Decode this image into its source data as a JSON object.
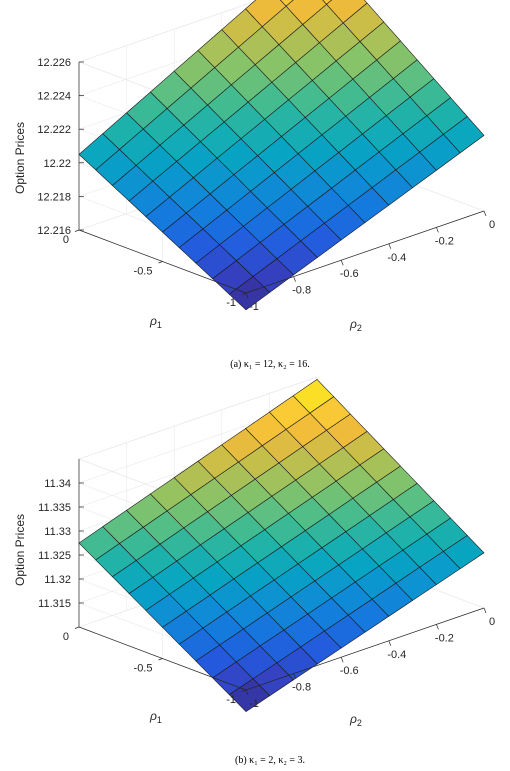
{
  "chart_data": [
    {
      "type": "surface",
      "title": "",
      "xlabel": "ρ_1",
      "ylabel": "ρ_2",
      "zlabel": "Option Prices",
      "grid": true,
      "colormap": "parula",
      "x_ticks": [
        "0",
        "-0.5",
        "-1"
      ],
      "y_ticks": [
        "-1",
        "-0.8",
        "-0.6",
        "-0.4",
        "-0.2",
        "0"
      ],
      "z_ticks": [
        "12.216",
        "12.218",
        "12.22",
        "12.222",
        "12.224",
        "12.226"
      ],
      "xlim": [
        -1,
        0
      ],
      "ylim": [
        -1,
        0
      ],
      "zlim": [
        12.216,
        12.226
      ],
      "corners": {
        "rho1_0_rho2_neg1": 12.2205,
        "rho1_neg1_rho2_neg1": 12.215,
        "rho1_0_rho2_0": 12.228,
        "rho1_neg1_rho2_0": 12.2205
      },
      "caption": "(a)  κ₁ = 12, κ₂ = 16."
    },
    {
      "type": "surface",
      "title": "",
      "xlabel": "ρ_1",
      "ylabel": "ρ_2",
      "zlabel": "Option Prices",
      "grid": true,
      "colormap": "parula",
      "x_ticks": [
        "0",
        "-0.5",
        "-1"
      ],
      "y_ticks": [
        "-1",
        "-0.8",
        "-0.6",
        "-0.4",
        "-0.2",
        "0"
      ],
      "z_ticks": [
        "11.315",
        "11.32",
        "11.325",
        "11.33",
        "11.335",
        "11.34"
      ],
      "xlim": [
        -1,
        0
      ],
      "ylim": [
        -1,
        0
      ],
      "zlim": [
        11.31,
        11.345
      ],
      "corners": {
        "rho1_0_rho2_neg1": 11.3275,
        "rho1_neg1_rho2_neg1": 11.3055,
        "rho1_0_rho2_0": 11.3445,
        "rho1_neg1_rho2_0": 11.3215
      },
      "caption": "(b)  κ₁ = 2, κ₂ = 3."
    }
  ]
}
